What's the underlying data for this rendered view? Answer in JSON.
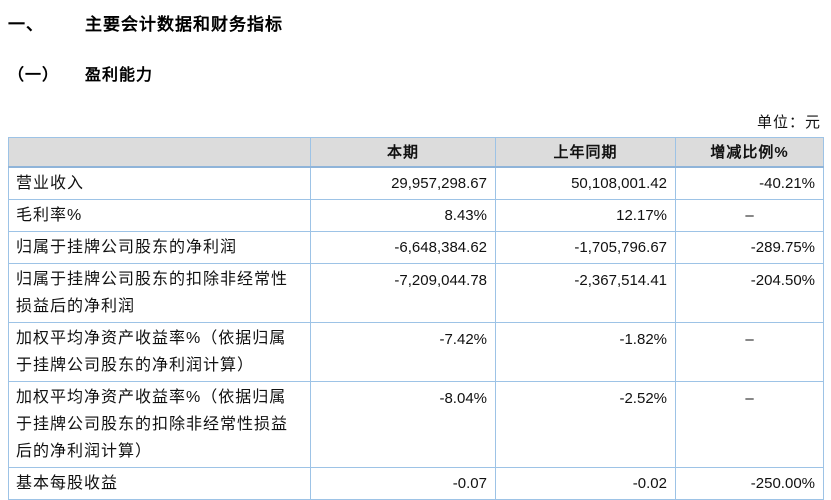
{
  "page": {
    "section_number": "一、",
    "section_title": "主要会计数据和财务指标",
    "subsection_number": "（一）",
    "subsection_title": "盈利能力",
    "unit_label": "单位：元"
  },
  "colors": {
    "table_border": "#9DC3E6",
    "header_background": "#DCDCDC",
    "text": "#111111"
  },
  "table": {
    "headers": [
      "",
      "本期",
      "上年同期",
      "增减比例%"
    ],
    "rows": [
      {
        "label": "营业收入",
        "current": "29,957,298.67",
        "prior": "50,108,001.42",
        "change": "-40.21%"
      },
      {
        "label": "毛利率%",
        "current": "8.43%",
        "prior": "12.17%",
        "change": "–"
      },
      {
        "label": "归属于挂牌公司股东的净利润",
        "current": "-6,648,384.62",
        "prior": "-1,705,796.67",
        "change": "-289.75%"
      },
      {
        "label": "归属于挂牌公司股东的扣除非经常性损益后的净利润",
        "current": "-7,209,044.78",
        "prior": "-2,367,514.41",
        "change": "-204.50%"
      },
      {
        "label": "加权平均净资产收益率%（依据归属于挂牌公司股东的净利润计算）",
        "current": "-7.42%",
        "prior": "-1.82%",
        "change": "–"
      },
      {
        "label": "加权平均净资产收益率%（依据归属于挂牌公司股东的扣除非经常性损益后的净利润计算）",
        "current": "-8.04%",
        "prior": "-2.52%",
        "change": "–"
      },
      {
        "label": "基本每股收益",
        "current": "-0.07",
        "prior": "-0.02",
        "change": "-250.00%"
      }
    ]
  }
}
